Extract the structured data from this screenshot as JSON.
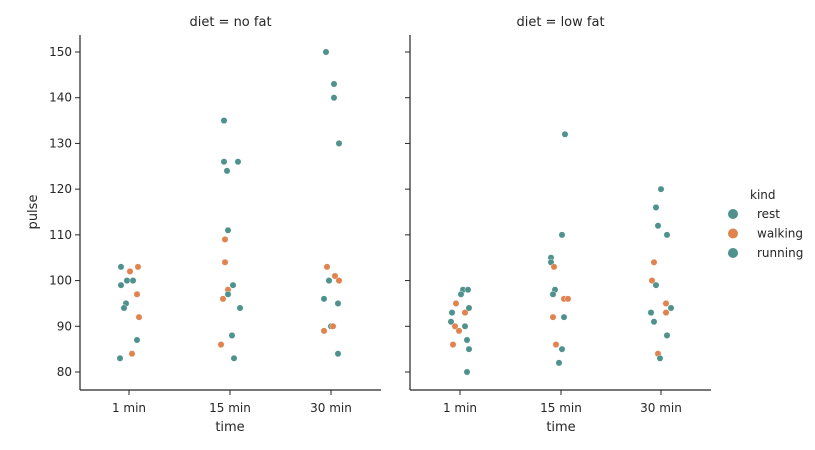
{
  "chart_data": {
    "type": "scatter",
    "subtype": "strip",
    "xlabel": "time",
    "ylabel": "pulse",
    "categories": [
      "1 min",
      "15 min",
      "30 min"
    ],
    "ylim": [
      76,
      154
    ],
    "yticks": [
      80,
      90,
      100,
      110,
      120,
      130,
      140,
      150
    ],
    "grid": false,
    "legend": {
      "title": "kind",
      "placement": "right",
      "entries": [
        "rest",
        "walking",
        "running"
      ]
    },
    "colors": {
      "rest": "#4f918c",
      "walking": "#e0834f",
      "running": "#4f918c"
    },
    "panels": [
      {
        "title": "diet = no fat",
        "points": [
          {
            "time": "1 min",
            "kind": "rest",
            "pulse": 103
          },
          {
            "time": "1 min",
            "kind": "walking",
            "pulse": 102
          },
          {
            "time": "1 min",
            "kind": "walking",
            "pulse": 103
          },
          {
            "time": "1 min",
            "kind": "rest",
            "pulse": 100
          },
          {
            "time": "1 min",
            "kind": "rest",
            "pulse": 100
          },
          {
            "time": "1 min",
            "kind": "rest",
            "pulse": 99
          },
          {
            "time": "1 min",
            "kind": "walking",
            "pulse": 97
          },
          {
            "time": "1 min",
            "kind": "running",
            "pulse": 95
          },
          {
            "time": "1 min",
            "kind": "running",
            "pulse": 94
          },
          {
            "time": "1 min",
            "kind": "walking",
            "pulse": 92
          },
          {
            "time": "1 min",
            "kind": "running",
            "pulse": 87
          },
          {
            "time": "1 min",
            "kind": "walking",
            "pulse": 84
          },
          {
            "time": "1 min",
            "kind": "rest",
            "pulse": 83
          },
          {
            "time": "15 min",
            "kind": "running",
            "pulse": 135
          },
          {
            "time": "15 min",
            "kind": "running",
            "pulse": 126
          },
          {
            "time": "15 min",
            "kind": "running",
            "pulse": 126
          },
          {
            "time": "15 min",
            "kind": "running",
            "pulse": 124
          },
          {
            "time": "15 min",
            "kind": "running",
            "pulse": 111
          },
          {
            "time": "15 min",
            "kind": "walking",
            "pulse": 109
          },
          {
            "time": "15 min",
            "kind": "walking",
            "pulse": 104
          },
          {
            "time": "15 min",
            "kind": "walking",
            "pulse": 98
          },
          {
            "time": "15 min",
            "kind": "rest",
            "pulse": 97
          },
          {
            "time": "15 min",
            "kind": "walking",
            "pulse": 96
          },
          {
            "time": "15 min",
            "kind": "walking",
            "pulse": 86
          },
          {
            "time": "15 min",
            "kind": "rest",
            "pulse": 99
          },
          {
            "time": "15 min",
            "kind": "rest",
            "pulse": 94
          },
          {
            "time": "15 min",
            "kind": "rest",
            "pulse": 88
          },
          {
            "time": "15 min",
            "kind": "rest",
            "pulse": 83
          },
          {
            "time": "30 min",
            "kind": "running",
            "pulse": 150
          },
          {
            "time": "30 min",
            "kind": "running",
            "pulse": 143
          },
          {
            "time": "30 min",
            "kind": "running",
            "pulse": 140
          },
          {
            "time": "30 min",
            "kind": "running",
            "pulse": 130
          },
          {
            "time": "30 min",
            "kind": "walking",
            "pulse": 103
          },
          {
            "time": "30 min",
            "kind": "walking",
            "pulse": 101
          },
          {
            "time": "30 min",
            "kind": "rest",
            "pulse": 100
          },
          {
            "time": "30 min",
            "kind": "walking",
            "pulse": 100
          },
          {
            "time": "30 min",
            "kind": "rest",
            "pulse": 96
          },
          {
            "time": "30 min",
            "kind": "rest",
            "pulse": 95
          },
          {
            "time": "30 min",
            "kind": "rest",
            "pulse": 90
          },
          {
            "time": "30 min",
            "kind": "walking",
            "pulse": 90
          },
          {
            "time": "30 min",
            "kind": "walking",
            "pulse": 89
          },
          {
            "time": "30 min",
            "kind": "running",
            "pulse": 84
          }
        ]
      },
      {
        "title": "diet = low fat",
        "points": [
          {
            "time": "1 min",
            "kind": "rest",
            "pulse": 98
          },
          {
            "time": "1 min",
            "kind": "rest",
            "pulse": 98
          },
          {
            "time": "1 min",
            "kind": "rest",
            "pulse": 97
          },
          {
            "time": "1 min",
            "kind": "walking",
            "pulse": 95
          },
          {
            "time": "1 min",
            "kind": "rest",
            "pulse": 93
          },
          {
            "time": "1 min",
            "kind": "walking",
            "pulse": 93
          },
          {
            "time": "1 min",
            "kind": "running",
            "pulse": 94
          },
          {
            "time": "1 min",
            "kind": "rest",
            "pulse": 91
          },
          {
            "time": "1 min",
            "kind": "walking",
            "pulse": 90
          },
          {
            "time": "1 min",
            "kind": "running",
            "pulse": 90
          },
          {
            "time": "1 min",
            "kind": "walking",
            "pulse": 89
          },
          {
            "time": "1 min",
            "kind": "running",
            "pulse": 87
          },
          {
            "time": "1 min",
            "kind": "walking",
            "pulse": 86
          },
          {
            "time": "1 min",
            "kind": "running",
            "pulse": 85
          },
          {
            "time": "1 min",
            "kind": "running",
            "pulse": 80
          },
          {
            "time": "15 min",
            "kind": "running",
            "pulse": 132
          },
          {
            "time": "15 min",
            "kind": "running",
            "pulse": 110
          },
          {
            "time": "15 min",
            "kind": "running",
            "pulse": 105
          },
          {
            "time": "15 min",
            "kind": "running",
            "pulse": 104
          },
          {
            "time": "15 min",
            "kind": "walking",
            "pulse": 103
          },
          {
            "time": "15 min",
            "kind": "rest",
            "pulse": 98
          },
          {
            "time": "15 min",
            "kind": "rest",
            "pulse": 97
          },
          {
            "time": "15 min",
            "kind": "walking",
            "pulse": 96
          },
          {
            "time": "15 min",
            "kind": "walking",
            "pulse": 96
          },
          {
            "time": "15 min",
            "kind": "walking",
            "pulse": 92
          },
          {
            "time": "15 min",
            "kind": "rest",
            "pulse": 92
          },
          {
            "time": "15 min",
            "kind": "walking",
            "pulse": 86
          },
          {
            "time": "15 min",
            "kind": "rest",
            "pulse": 85
          },
          {
            "time": "15 min",
            "kind": "rest",
            "pulse": 82
          },
          {
            "time": "30 min",
            "kind": "running",
            "pulse": 120
          },
          {
            "time": "30 min",
            "kind": "running",
            "pulse": 116
          },
          {
            "time": "30 min",
            "kind": "running",
            "pulse": 112
          },
          {
            "time": "30 min",
            "kind": "running",
            "pulse": 110
          },
          {
            "time": "30 min",
            "kind": "walking",
            "pulse": 104
          },
          {
            "time": "30 min",
            "kind": "walking",
            "pulse": 100
          },
          {
            "time": "30 min",
            "kind": "rest",
            "pulse": 99
          },
          {
            "time": "30 min",
            "kind": "walking",
            "pulse": 95
          },
          {
            "time": "30 min",
            "kind": "rest",
            "pulse": 94
          },
          {
            "time": "30 min",
            "kind": "rest",
            "pulse": 93
          },
          {
            "time": "30 min",
            "kind": "walking",
            "pulse": 93
          },
          {
            "time": "30 min",
            "kind": "rest",
            "pulse": 91
          },
          {
            "time": "30 min",
            "kind": "running",
            "pulse": 88
          },
          {
            "time": "30 min",
            "kind": "walking",
            "pulse": 84
          },
          {
            "time": "30 min",
            "kind": "rest",
            "pulse": 83
          }
        ]
      }
    ]
  }
}
